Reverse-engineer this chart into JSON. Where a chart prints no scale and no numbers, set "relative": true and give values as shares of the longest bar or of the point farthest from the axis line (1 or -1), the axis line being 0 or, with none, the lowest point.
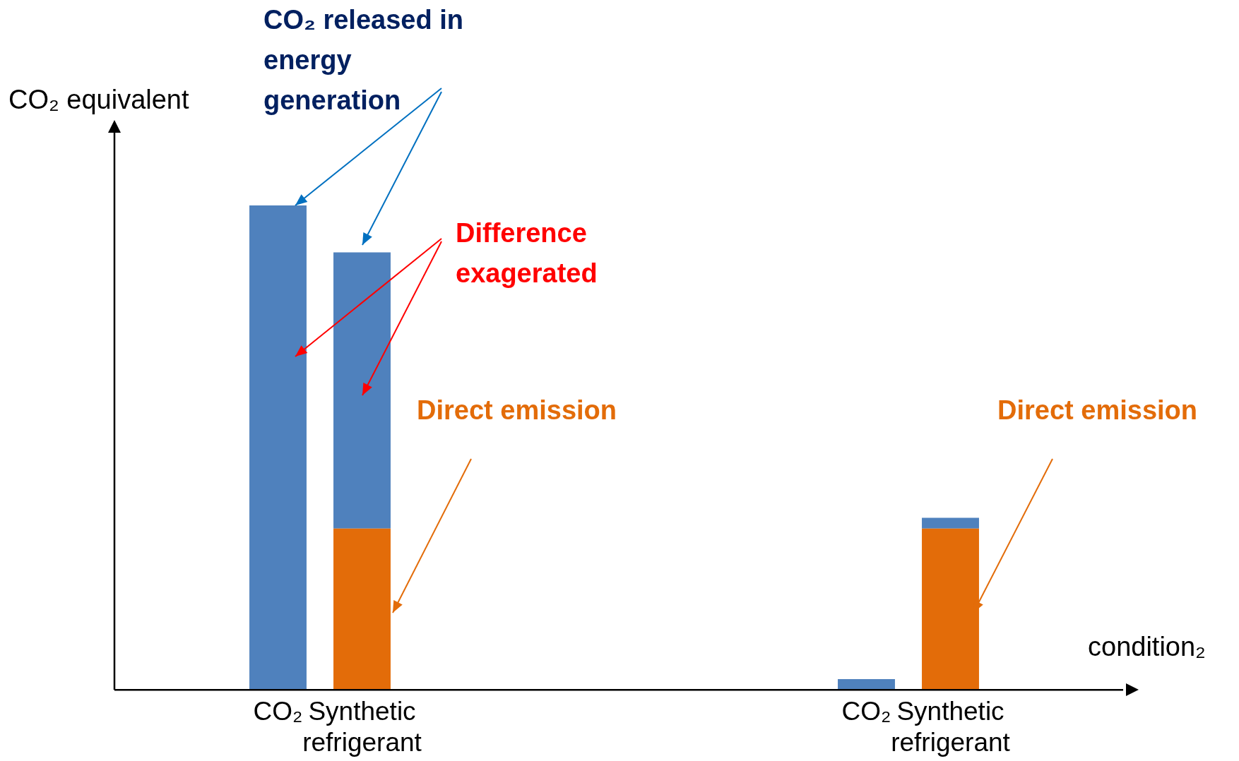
{
  "chart_data": {
    "type": "bar",
    "relative": true,
    "stacked": true,
    "xlabel": "condition₂",
    "ylabel": "CO₂ equivalent",
    "categories": [
      "CO₂",
      "Synthetic refrigerant",
      null,
      null,
      null,
      null,
      null,
      "CO₂",
      "Synthetic refrigerant"
    ],
    "series": [
      {
        "color": "#e36c09",
        "values": [
          null,
          0.333,
          null,
          null,
          null,
          null,
          null,
          null,
          0.333
        ]
      },
      {
        "color": "#4f81bd",
        "values": [
          1,
          0.57,
          null,
          null,
          null,
          null,
          null,
          0.022,
          0.022
        ]
      }
    ],
    "annotations": [
      "CO₂ released in energy generation",
      "Difference exagerated",
      "Direct emission",
      "Direct emission"
    ]
  }
}
